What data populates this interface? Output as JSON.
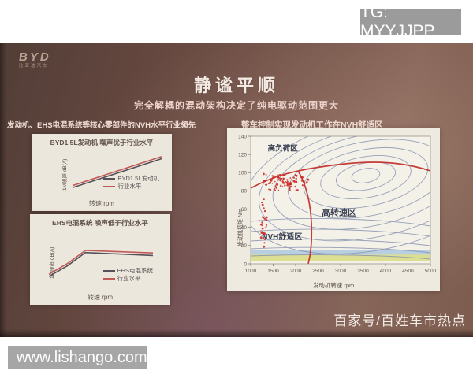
{
  "overlay": {
    "tg": "TG: MYYJJPP",
    "url": "www.lishango.com",
    "credit": "百家号/百姓车市热点"
  },
  "slide": {
    "logo_text": "BYD",
    "logo_sub": "比亚迪汽车",
    "title": "静谧平顺",
    "subtitle": "完全解耦的混动架构决定了纯电驱动范围更大",
    "left_header": "发动机、EHS电混系统等核心零部件的NVH水平行业领先",
    "right_header": "整车控制实现发动机工作在NVH舒适区"
  },
  "chart_data": [
    {
      "id": "engine-noise",
      "type": "line",
      "title": "BYD1.5L发动机 噪声优于行业水平",
      "xlabel": "转速 rpm",
      "ylabel": "1M噪声 dB(A)",
      "axis_tick_labels": "none visible",
      "legend_position": "bottom-right",
      "series": [
        {
          "name": "BYD1.5L发动机",
          "color": "#55505a",
          "points": [
            [
              0,
              8
            ],
            [
              100,
              88
            ]
          ]
        },
        {
          "name": "行业水平",
          "color": "#c05a55",
          "points": [
            [
              0,
              14
            ],
            [
              100,
              94
            ]
          ]
        }
      ]
    },
    {
      "id": "ehs-noise",
      "type": "line",
      "title": "EHS电混系统 噪声低于行业水平",
      "xlabel": "转速 rpm",
      "ylabel": "1M噪声 dB(A)",
      "axis_tick_labels": "none visible",
      "legend_position": "bottom-right",
      "series": [
        {
          "name": "EHS电混系统",
          "color": "#55505a",
          "points": [
            [
              0,
              2
            ],
            [
              18,
              32
            ],
            [
              35,
              68
            ],
            [
              100,
              60
            ]
          ]
        },
        {
          "name": "行业水平",
          "color": "#c05a55",
          "points": [
            [
              0,
              8
            ],
            [
              18,
              38
            ],
            [
              35,
              74
            ],
            [
              100,
              67
            ]
          ]
        }
      ]
    },
    {
      "id": "engine-map",
      "type": "contour-scatter",
      "title": "",
      "xlabel": "发动机转速 rpm",
      "ylabel": "发动机扭矩 Nm",
      "xlim": [
        1000,
        5000
      ],
      "ylim": [
        0,
        140
      ],
      "x_ticks": [
        1000,
        1500,
        2000,
        2500,
        3000,
        3500,
        4000,
        4500,
        5000
      ],
      "y_ticks": [
        0,
        20,
        40,
        60,
        80,
        100,
        120,
        140
      ],
      "contour_color": "#8793b0",
      "boundary_color": "#c43a35",
      "region_labels": [
        {
          "text": "高负荷区",
          "rpm": 1380,
          "torque": 124,
          "size": 9.5
        },
        {
          "text": "高转速区",
          "rpm": 2580,
          "torque": 53,
          "size": 11
        },
        {
          "text": "NVH舒适区",
          "rpm": 1250,
          "torque": 27,
          "size": 10
        }
      ],
      "bands": [
        {
          "torque": [
            10,
            15
          ],
          "color": "#a9c6df"
        },
        {
          "torque": [
            3,
            10
          ],
          "color": "#d6da7a"
        }
      ],
      "scatter": {
        "color": "#cc2a25",
        "clusters": [
          {
            "rpm": [
              1150,
              2350
            ],
            "torque": [
              78,
              100
            ],
            "count": 85
          },
          {
            "rpm": [
              1150,
              1400
            ],
            "torque": [
              3,
              76
            ],
            "count": 32
          }
        ]
      }
    }
  ]
}
